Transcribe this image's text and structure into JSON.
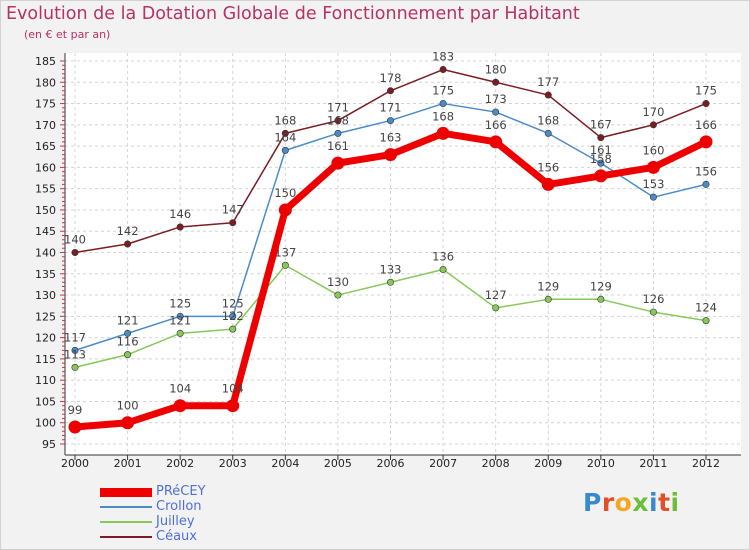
{
  "header": {
    "title": "Evolution de la Dotation Globale de Fonctionnement par Habitant",
    "subtitle": "(en € et par an)"
  },
  "logo": {
    "letters": [
      "P",
      "r",
      "o",
      "x",
      "i",
      "t",
      "i"
    ],
    "colors": [
      "#3a88d0",
      "#e2502a",
      "#f5a623",
      "#6cbf3a",
      "#3a88d0",
      "#e2502a",
      "#6cbf3a"
    ]
  },
  "chart_data": {
    "type": "line",
    "title": "Evolution de la Dotation Globale de Fonctionnement par Habitant",
    "subtitle": "(en € et par an)",
    "xlabel": "",
    "ylabel": "",
    "ylim": [
      95,
      185
    ],
    "yticks": [
      95,
      100,
      105,
      110,
      115,
      120,
      125,
      130,
      135,
      140,
      145,
      150,
      155,
      160,
      165,
      170,
      175,
      180,
      185
    ],
    "grid": true,
    "legend_position": "bottom-left",
    "x": [
      "2000",
      "2001",
      "2002",
      "2003",
      "2004",
      "2005",
      "2006",
      "2007",
      "2008",
      "2009",
      "2010",
      "2011",
      "2012"
    ],
    "series": [
      {
        "name": "Céaux",
        "color": "#7b1d22",
        "values": [
          140,
          142,
          146,
          147,
          168,
          171,
          178,
          183,
          180,
          177,
          167,
          170,
          175
        ]
      },
      {
        "name": "Crollon",
        "color": "#4b8cc8",
        "values": [
          117,
          121,
          125,
          125,
          164,
          168,
          171,
          175,
          173,
          168,
          161,
          153,
          156
        ]
      },
      {
        "name": "Juilley",
        "color": "#86c95a",
        "values": [
          113,
          116,
          121,
          122,
          137,
          130,
          133,
          136,
          127,
          129,
          129,
          126,
          124
        ]
      },
      {
        "name": "PRéCEY",
        "color": "#ee0000",
        "values": [
          99,
          100,
          104,
          104,
          150,
          161,
          163,
          168,
          166,
          156,
          158,
          160,
          166
        ]
      }
    ],
    "legend": [
      {
        "name": "PRéCEY",
        "color": "#ee0000"
      },
      {
        "name": "Crollon",
        "color": "#4b8cc8"
      },
      {
        "name": "Juilley",
        "color": "#86c95a"
      },
      {
        "name": "Céaux",
        "color": "#7b1d22"
      }
    ]
  }
}
